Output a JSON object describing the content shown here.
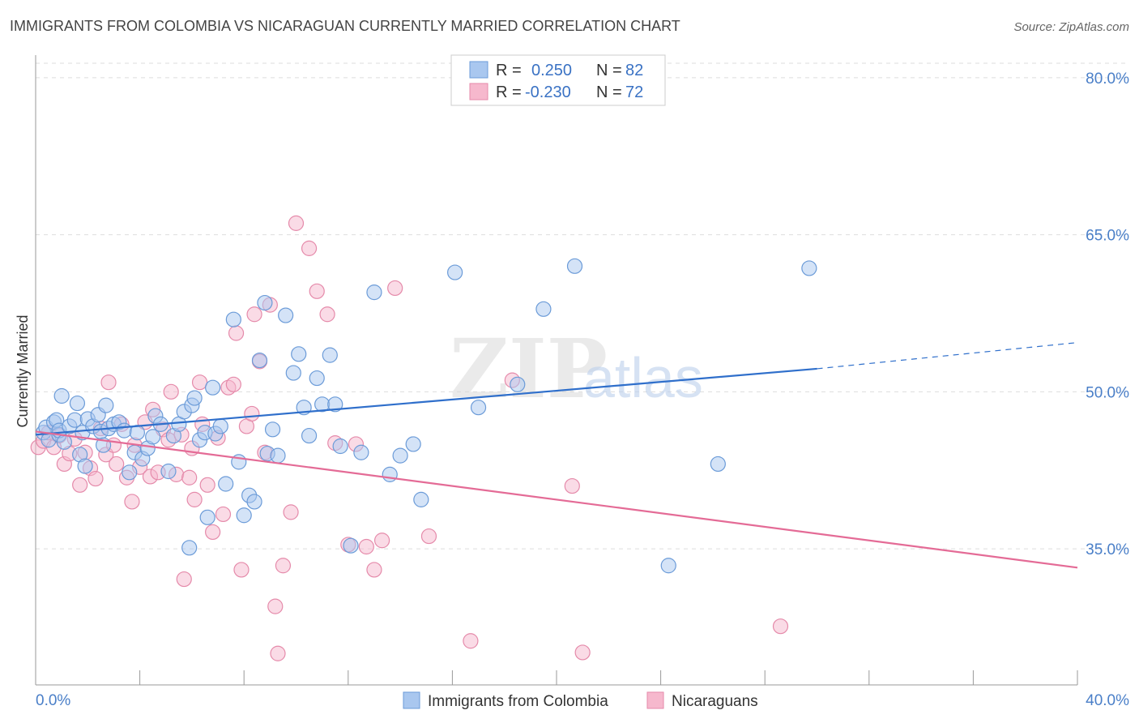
{
  "title": "IMMIGRANTS FROM COLOMBIA VS NICARAGUAN CURRENTLY MARRIED CORRELATION CHART",
  "source": "Source: ZipAtlas.com",
  "watermark": {
    "zip": "ZIP",
    "atlas": "atlas"
  },
  "colors": {
    "blue_fill": "#a9c7ef",
    "blue_stroke": "#6b9bd8",
    "blue_line": "#2f6fcb",
    "pink_fill": "#f6b8cd",
    "pink_stroke": "#e58aaa",
    "pink_line": "#e46b96",
    "grid": "#dddddd",
    "axis": "#999999",
    "tick_label": "#4a7fc8"
  },
  "legend": {
    "rows": [
      {
        "r_label": "R =",
        "r_value": "0.250",
        "n_label": "N =",
        "n_value": "82"
      },
      {
        "r_label": "R =",
        "r_value": "-0.230",
        "n_label": "N =",
        "n_value": "72"
      }
    ]
  },
  "chart_data": {
    "type": "scatter",
    "xlabel": "",
    "ylabel": "Currently Married",
    "xlim": [
      0,
      40
    ],
    "ylim": [
      22,
      82
    ],
    "x_tick_labels": {
      "min": "0.0%",
      "max": "40.0%"
    },
    "y_ticks": [
      35,
      50,
      65,
      80
    ],
    "y_tick_labels": [
      "35.0%",
      "50.0%",
      "65.0%",
      "80.0%"
    ],
    "grid": true,
    "legend_position": "top-center",
    "series": [
      {
        "name": "Immigrants from Colombia",
        "color": "#a9c7ef",
        "r": 0.25,
        "n": 82,
        "trend": {
          "x": [
            0,
            30
          ],
          "y": [
            45.9,
            52.2
          ],
          "dashed_x": [
            30,
            40
          ],
          "dashed_y": [
            52.2,
            54.7
          ]
        },
        "points": [
          [
            0.3,
            46.1
          ],
          [
            0.4,
            46.6
          ],
          [
            0.5,
            45.4
          ],
          [
            0.7,
            47.1
          ],
          [
            0.8,
            47.3
          ],
          [
            0.9,
            45.9
          ],
          [
            0.9,
            46.3
          ],
          [
            1.1,
            45.2
          ],
          [
            1.3,
            46.7
          ],
          [
            1.5,
            47.3
          ],
          [
            1.6,
            48.9
          ],
          [
            1.7,
            44.0
          ],
          [
            1.8,
            46.1
          ],
          [
            1.9,
            42.9
          ],
          [
            2.0,
            47.4
          ],
          [
            2.2,
            46.7
          ],
          [
            2.4,
            47.8
          ],
          [
            2.5,
            46.2
          ],
          [
            2.6,
            44.9
          ],
          [
            2.8,
            46.5
          ],
          [
            3.0,
            46.9
          ],
          [
            3.2,
            47.1
          ],
          [
            3.4,
            46.3
          ],
          [
            3.6,
            42.3
          ],
          [
            3.8,
            44.2
          ],
          [
            3.9,
            46.1
          ],
          [
            4.1,
            43.6
          ],
          [
            4.3,
            44.6
          ],
          [
            4.5,
            45.7
          ],
          [
            4.6,
            47.7
          ],
          [
            4.8,
            46.9
          ],
          [
            5.1,
            42.4
          ],
          [
            5.3,
            45.8
          ],
          [
            5.5,
            46.9
          ],
          [
            5.7,
            48.1
          ],
          [
            5.9,
            35.1
          ],
          [
            6.0,
            48.7
          ],
          [
            6.1,
            49.4
          ],
          [
            6.3,
            45.4
          ],
          [
            6.5,
            46.1
          ],
          [
            6.6,
            38.0
          ],
          [
            6.8,
            50.4
          ],
          [
            6.9,
            46.0
          ],
          [
            7.1,
            46.7
          ],
          [
            7.3,
            41.2
          ],
          [
            7.6,
            56.9
          ],
          [
            7.8,
            43.3
          ],
          [
            8.0,
            38.2
          ],
          [
            8.2,
            40.1
          ],
          [
            8.4,
            39.5
          ],
          [
            8.6,
            53.0
          ],
          [
            8.8,
            58.5
          ],
          [
            8.9,
            44.1
          ],
          [
            9.1,
            46.4
          ],
          [
            9.3,
            43.9
          ],
          [
            9.6,
            57.3
          ],
          [
            9.9,
            51.8
          ],
          [
            10.1,
            53.6
          ],
          [
            10.3,
            48.5
          ],
          [
            10.5,
            45.8
          ],
          [
            10.8,
            51.3
          ],
          [
            11.0,
            48.8
          ],
          [
            11.3,
            53.5
          ],
          [
            11.5,
            48.8
          ],
          [
            11.7,
            44.8
          ],
          [
            12.1,
            35.3
          ],
          [
            12.5,
            44.2
          ],
          [
            13.0,
            59.5
          ],
          [
            13.6,
            42.1
          ],
          [
            14.0,
            43.9
          ],
          [
            14.5,
            45.0
          ],
          [
            14.8,
            39.7
          ],
          [
            16.1,
            61.4
          ],
          [
            17.0,
            48.5
          ],
          [
            18.5,
            50.7
          ],
          [
            19.5,
            57.9
          ],
          [
            20.7,
            62.0
          ],
          [
            24.3,
            33.4
          ],
          [
            26.2,
            43.1
          ],
          [
            29.7,
            61.8
          ],
          [
            1.0,
            49.6
          ],
          [
            2.7,
            48.7
          ]
        ]
      },
      {
        "name": "Nicaraguans",
        "color": "#f6b8cd",
        "r": -0.23,
        "n": 72,
        "trend": {
          "x": [
            0,
            40
          ],
          "y": [
            46.2,
            33.2
          ]
        },
        "points": [
          [
            0.1,
            44.7
          ],
          [
            0.3,
            45.3
          ],
          [
            0.5,
            46.1
          ],
          [
            0.7,
            44.7
          ],
          [
            0.9,
            45.8
          ],
          [
            1.1,
            43.1
          ],
          [
            1.3,
            44.1
          ],
          [
            1.5,
            45.5
          ],
          [
            1.7,
            41.1
          ],
          [
            1.9,
            44.2
          ],
          [
            2.1,
            42.7
          ],
          [
            2.3,
            41.7
          ],
          [
            2.5,
            46.5
          ],
          [
            2.7,
            44.0
          ],
          [
            2.8,
            50.9
          ],
          [
            3.1,
            43.1
          ],
          [
            3.3,
            46.9
          ],
          [
            3.5,
            41.8
          ],
          [
            3.7,
            39.5
          ],
          [
            3.8,
            44.9
          ],
          [
            4.0,
            42.8
          ],
          [
            4.2,
            47.1
          ],
          [
            4.4,
            41.9
          ],
          [
            4.5,
            48.3
          ],
          [
            4.7,
            42.3
          ],
          [
            4.9,
            46.4
          ],
          [
            5.1,
            45.4
          ],
          [
            5.2,
            50.0
          ],
          [
            5.4,
            42.1
          ],
          [
            5.6,
            45.9
          ],
          [
            5.7,
            32.1
          ],
          [
            5.9,
            41.8
          ],
          [
            6.1,
            39.7
          ],
          [
            6.3,
            50.9
          ],
          [
            6.4,
            46.9
          ],
          [
            6.6,
            41.1
          ],
          [
            6.8,
            36.6
          ],
          [
            7.0,
            45.6
          ],
          [
            7.2,
            38.3
          ],
          [
            7.4,
            50.4
          ],
          [
            7.6,
            50.7
          ],
          [
            7.7,
            55.6
          ],
          [
            7.9,
            33.0
          ],
          [
            8.1,
            46.7
          ],
          [
            8.3,
            47.9
          ],
          [
            8.4,
            57.4
          ],
          [
            8.6,
            52.9
          ],
          [
            8.8,
            44.2
          ],
          [
            9.0,
            58.3
          ],
          [
            9.2,
            29.5
          ],
          [
            9.3,
            25.0
          ],
          [
            9.5,
            33.4
          ],
          [
            9.8,
            38.5
          ],
          [
            10.0,
            66.1
          ],
          [
            10.5,
            63.7
          ],
          [
            10.8,
            59.6
          ],
          [
            11.2,
            57.4
          ],
          [
            11.5,
            45.1
          ],
          [
            12.0,
            35.4
          ],
          [
            12.3,
            45.0
          ],
          [
            12.7,
            35.2
          ],
          [
            13.0,
            33.0
          ],
          [
            13.3,
            35.8
          ],
          [
            13.8,
            59.9
          ],
          [
            15.1,
            36.2
          ],
          [
            16.7,
            26.2
          ],
          [
            18.3,
            51.1
          ],
          [
            20.6,
            41.0
          ],
          [
            21.0,
            25.1
          ],
          [
            28.6,
            27.6
          ],
          [
            3.0,
            44.9
          ],
          [
            6.0,
            44.6
          ]
        ]
      }
    ]
  }
}
